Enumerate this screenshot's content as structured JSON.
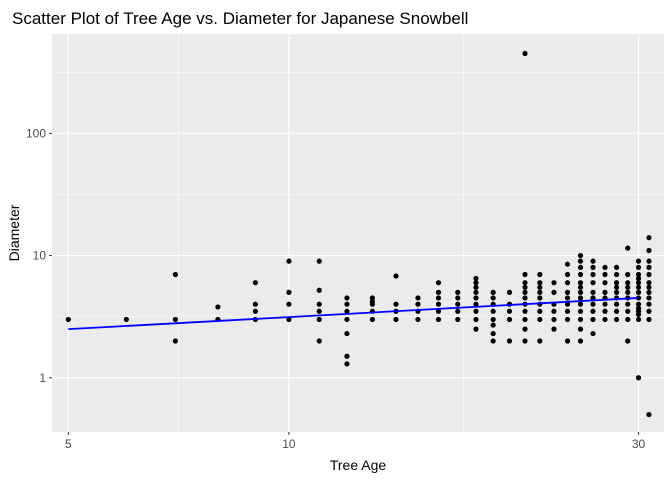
{
  "chart_data": {
    "type": "scatter",
    "title": "Scatter Plot of Tree Age vs. Diameter for Japanese Snowbell",
    "xlabel": "Tree Age",
    "ylabel": "Diameter",
    "x_scale": "log",
    "y_scale": "log",
    "xlim": [
      4.75,
      32.5
    ],
    "ylim": [
      0.36,
      650
    ],
    "x_ticks": [
      5,
      10,
      30
    ],
    "y_ticks": [
      1,
      10,
      100
    ],
    "grid": true,
    "legend": "none",
    "colors": {
      "panel": "#ebebeb",
      "grid": "#ffffff",
      "points": "#000000",
      "trend": "#0000ff"
    },
    "trend_line": {
      "method": "linear fit on log-log scale",
      "x": [
        5,
        30
      ],
      "y": [
        2.5,
        4.5
      ]
    },
    "points": [
      [
        5,
        3
      ],
      [
        6,
        3
      ],
      [
        7,
        7
      ],
      [
        7,
        3
      ],
      [
        7,
        2
      ],
      [
        8,
        3.8
      ],
      [
        8,
        3
      ],
      [
        9,
        6
      ],
      [
        9,
        4
      ],
      [
        9,
        3.5
      ],
      [
        9,
        3
      ],
      [
        10,
        9
      ],
      [
        10,
        5
      ],
      [
        10,
        4
      ],
      [
        10,
        3
      ],
      [
        11,
        9
      ],
      [
        11,
        5.2
      ],
      [
        11,
        4
      ],
      [
        11,
        3.5
      ],
      [
        11,
        3
      ],
      [
        11,
        2
      ],
      [
        12,
        4.5
      ],
      [
        12,
        4
      ],
      [
        12,
        3.5
      ],
      [
        12,
        3
      ],
      [
        12,
        2.3
      ],
      [
        12,
        1.5
      ],
      [
        12,
        1.3
      ],
      [
        13,
        4.5
      ],
      [
        13,
        4.2
      ],
      [
        13,
        4
      ],
      [
        13,
        3.5
      ],
      [
        13,
        3
      ],
      [
        14,
        6.8
      ],
      [
        14,
        4
      ],
      [
        14,
        3.5
      ],
      [
        14,
        3
      ],
      [
        15,
        4.5
      ],
      [
        15,
        4
      ],
      [
        15,
        3.5
      ],
      [
        15,
        3
      ],
      [
        16,
        6
      ],
      [
        16,
        5
      ],
      [
        16,
        4.5
      ],
      [
        16,
        4
      ],
      [
        16,
        3.5
      ],
      [
        16,
        3
      ],
      [
        17,
        5
      ],
      [
        17,
        4.5
      ],
      [
        17,
        4
      ],
      [
        17,
        3.5
      ],
      [
        17,
        3
      ],
      [
        18,
        6.5
      ],
      [
        18,
        6
      ],
      [
        18,
        5.5
      ],
      [
        18,
        5
      ],
      [
        18,
        4.5
      ],
      [
        18,
        4
      ],
      [
        18,
        3.5
      ],
      [
        18,
        3
      ],
      [
        18,
        2.5
      ],
      [
        19,
        5
      ],
      [
        19,
        4.5
      ],
      [
        19,
        4
      ],
      [
        19,
        3.5
      ],
      [
        19,
        3
      ],
      [
        19,
        2.7
      ],
      [
        19,
        2.3
      ],
      [
        19,
        2
      ],
      [
        20,
        5
      ],
      [
        20,
        4
      ],
      [
        20,
        3.5
      ],
      [
        20,
        3
      ],
      [
        20,
        2
      ],
      [
        21,
        7
      ],
      [
        21,
        6
      ],
      [
        21,
        5.5
      ],
      [
        21,
        5
      ],
      [
        21,
        4.5
      ],
      [
        21,
        4
      ],
      [
        21,
        3.5
      ],
      [
        21,
        3
      ],
      [
        21,
        2.5
      ],
      [
        21,
        2
      ],
      [
        21,
        450
      ],
      [
        22,
        7
      ],
      [
        22,
        6
      ],
      [
        22,
        5.5
      ],
      [
        22,
        5
      ],
      [
        22,
        4.5
      ],
      [
        22,
        4
      ],
      [
        22,
        3.5
      ],
      [
        22,
        3
      ],
      [
        22,
        2
      ],
      [
        23,
        6
      ],
      [
        23,
        5
      ],
      [
        23,
        4
      ],
      [
        23,
        3.5
      ],
      [
        23,
        3
      ],
      [
        23,
        2.5
      ],
      [
        24,
        8.5
      ],
      [
        24,
        7
      ],
      [
        24,
        6
      ],
      [
        24,
        5
      ],
      [
        24,
        4.5
      ],
      [
        24,
        4
      ],
      [
        24,
        3.5
      ],
      [
        24,
        3
      ],
      [
        24,
        2
      ],
      [
        25,
        10
      ],
      [
        25,
        9
      ],
      [
        25,
        8
      ],
      [
        25,
        7
      ],
      [
        25,
        6
      ],
      [
        25,
        5.5
      ],
      [
        25,
        5
      ],
      [
        25,
        4.5
      ],
      [
        25,
        4
      ],
      [
        25,
        3.5
      ],
      [
        25,
        3
      ],
      [
        25,
        2.5
      ],
      [
        25,
        2
      ],
      [
        26,
        9
      ],
      [
        26,
        8
      ],
      [
        26,
        7
      ],
      [
        26,
        6
      ],
      [
        26,
        5
      ],
      [
        26,
        4.5
      ],
      [
        26,
        4
      ],
      [
        26,
        3.5
      ],
      [
        26,
        3
      ],
      [
        26,
        2.3
      ],
      [
        27,
        8
      ],
      [
        27,
        7
      ],
      [
        27,
        6
      ],
      [
        27,
        5
      ],
      [
        27,
        4.5
      ],
      [
        27,
        4
      ],
      [
        27,
        3.5
      ],
      [
        27,
        3
      ],
      [
        28,
        8
      ],
      [
        28,
        7
      ],
      [
        28,
        6
      ],
      [
        28,
        5.5
      ],
      [
        28,
        5
      ],
      [
        28,
        4.5
      ],
      [
        28,
        4
      ],
      [
        28,
        3.5
      ],
      [
        28,
        3
      ],
      [
        29,
        11.5
      ],
      [
        29,
        7
      ],
      [
        29,
        6
      ],
      [
        29,
        5.5
      ],
      [
        29,
        5
      ],
      [
        29,
        4.5
      ],
      [
        29,
        4
      ],
      [
        29,
        3.5
      ],
      [
        29,
        3
      ],
      [
        29,
        2
      ],
      [
        30,
        9
      ],
      [
        30,
        8
      ],
      [
        30,
        7
      ],
      [
        30,
        6.5
      ],
      [
        30,
        6
      ],
      [
        30,
        5.5
      ],
      [
        30,
        5
      ],
      [
        30,
        4.5
      ],
      [
        30,
        4
      ],
      [
        30,
        3.7
      ],
      [
        30,
        3.5
      ],
      [
        30,
        3.3
      ],
      [
        30,
        3
      ],
      [
        30,
        1
      ],
      [
        31,
        14
      ],
      [
        31,
        11
      ],
      [
        31,
        9
      ],
      [
        31,
        8
      ],
      [
        31,
        7
      ],
      [
        31,
        6
      ],
      [
        31,
        5.5
      ],
      [
        31,
        5
      ],
      [
        31,
        4.5
      ],
      [
        31,
        4
      ],
      [
        31,
        3.5
      ],
      [
        31,
        3
      ],
      [
        31,
        0.5
      ]
    ]
  }
}
